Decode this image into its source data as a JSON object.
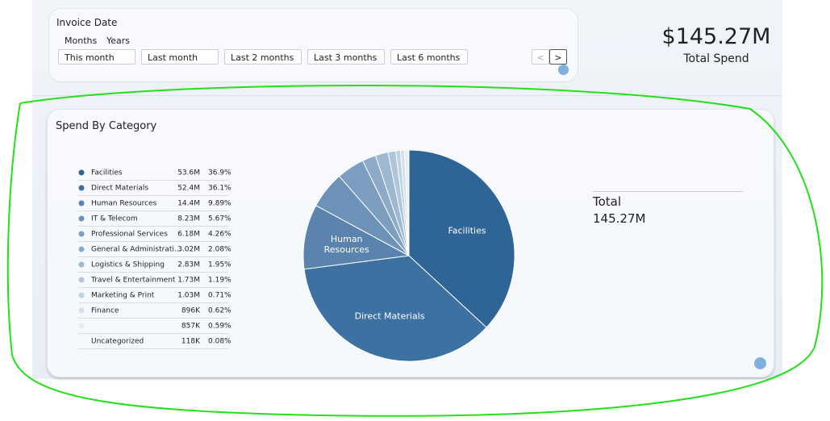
{
  "filter": {
    "title": "Invoice Date",
    "tabs": [
      "Months",
      "Years"
    ],
    "buttons": [
      "This month",
      "Last month",
      "Last 2 months",
      "Last 3 months",
      "Last 6 months"
    ]
  },
  "kpi": {
    "value": "$145.27M",
    "label": "Total Spend"
  },
  "chart_data": {
    "type": "pie",
    "title": "Spend By Category",
    "categories": [
      "Facilities",
      "Direct Materials",
      "Human Resources",
      "IT & Telecom",
      "Professional Services",
      "General & Administrati...",
      "Logistics & Shipping",
      "Travel & Entertainment",
      "Marketing & Print",
      "Finance",
      null,
      "Uncategorized"
    ],
    "values": [
      53600000,
      52400000,
      14400000,
      8230000,
      6180000,
      3020000,
      2830000,
      1730000,
      1030000,
      896000,
      857000,
      118000
    ],
    "value_labels": [
      "53.6M",
      "52.4M",
      "14.4M",
      "8.23M",
      "6.18M",
      "3.02M",
      "2.83M",
      "1.73M",
      "1.03M",
      "896K",
      "857K",
      "118K"
    ],
    "percent_labels": [
      "36.9%",
      "36.1%",
      "9.89%",
      "5.67%",
      "4.26%",
      "2.08%",
      "1.95%",
      "1.19%",
      "0.71%",
      "0.62%",
      "0.59%",
      "0.08%"
    ],
    "colors": [
      "#2f6496",
      "#3d71a1",
      "#5a84ae",
      "#6c92b8",
      "#7c9ec1",
      "#8dabc9",
      "#9eb8d2",
      "#afc5db",
      "#c1d2e4",
      "#d3dfec",
      "#e5ecf5",
      "#f4f7fb"
    ],
    "total_label": "Total",
    "total_value": "145.27M"
  }
}
